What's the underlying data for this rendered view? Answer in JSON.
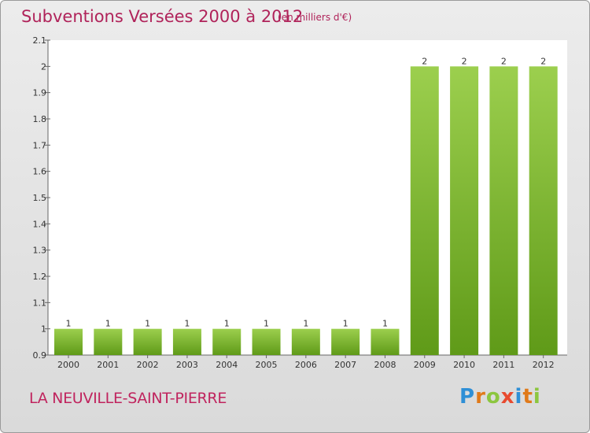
{
  "title": "Subventions Versées 2000 à 2012",
  "subtitle": "(en milliers d'€)",
  "commune": "LA NEUVILLE-SAINT-PIERRE",
  "logo": {
    "letters": [
      "P",
      "r",
      "o",
      "x",
      "i",
      "t",
      "i"
    ],
    "colors": [
      "#2e8fd6",
      "#e07a1a",
      "#8cc63f",
      "#e84a2f",
      "#2e8fd6",
      "#e07a1a",
      "#8cc63f"
    ]
  },
  "colors": {
    "title": "#b0235a",
    "bar_top": "#9ccf4e",
    "bar_bottom": "#5f9a18",
    "plot_bg": "#ffffff"
  },
  "chart_data": {
    "type": "bar",
    "categories": [
      "2000",
      "2001",
      "2002",
      "2003",
      "2004",
      "2005",
      "2006",
      "2007",
      "2008",
      "2009",
      "2010",
      "2011",
      "2012"
    ],
    "values": [
      1,
      1,
      1,
      1,
      1,
      1,
      1,
      1,
      1,
      2,
      2,
      2,
      2
    ],
    "data_labels": [
      "1",
      "1",
      "1",
      "1",
      "1",
      "1",
      "1",
      "1",
      "1",
      "2",
      "2",
      "2",
      "2"
    ],
    "yticks": [
      "0.9",
      "1",
      "1.1",
      "1.2",
      "1.3",
      "1.4",
      "1.5",
      "1.6",
      "1.7",
      "1.8",
      "1.9",
      "2",
      "2.1"
    ],
    "ylim": [
      0.9,
      2.1
    ],
    "grid": false
  }
}
